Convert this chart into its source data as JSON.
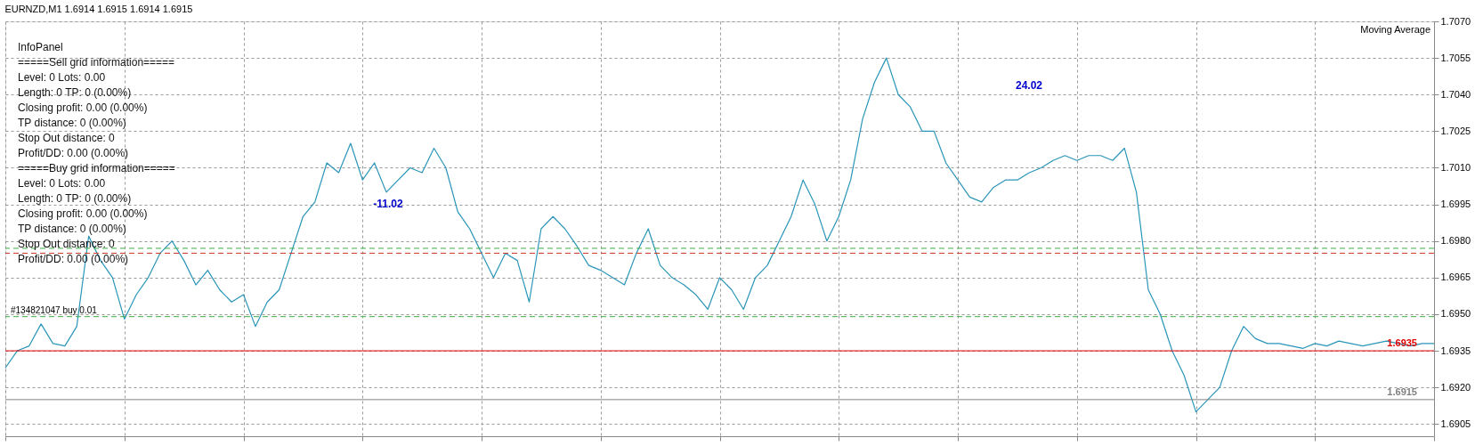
{
  "chart_data": {
    "type": "line",
    "title": "EURNZD,M1  1.6914 1.6915 1.6914 1.6915",
    "categories": [
      null,
      null,
      null,
      null,
      null,
      null,
      null,
      null,
      null,
      null,
      null,
      null,
      null,
      null,
      null,
      null,
      null,
      null,
      null,
      null,
      null,
      null,
      null,
      null,
      null,
      null,
      null,
      null,
      null,
      null,
      null,
      null,
      null,
      null,
      null,
      null,
      null,
      null,
      null,
      null,
      null,
      null,
      null,
      null,
      null,
      null,
      null,
      null,
      null,
      null,
      null,
      null,
      null,
      null,
      null,
      null,
      null,
      null,
      null,
      null,
      null,
      null,
      null,
      null,
      null,
      null,
      null,
      null,
      null,
      null,
      null,
      null,
      null,
      null,
      null,
      null,
      null,
      null,
      null,
      null,
      null,
      null,
      null,
      null,
      null,
      null,
      null,
      null,
      null,
      null,
      null,
      null,
      null,
      null,
      null,
      null,
      null,
      null,
      null,
      null,
      null,
      null,
      null,
      null,
      null,
      null,
      null,
      null,
      null,
      null,
      null,
      null,
      null,
      null,
      null,
      null,
      null,
      null,
      null,
      null,
      null
    ],
    "series": [
      {
        "color": "#2a95b8",
        "values": [
          1.6928,
          1.6935,
          1.6937,
          1.6946,
          1.6938,
          1.6937,
          1.6945,
          1.6982,
          1.6972,
          1.6965,
          1.6948,
          1.6958,
          1.6965,
          1.6975,
          1.698,
          1.6972,
          1.6962,
          1.6968,
          1.696,
          1.6955,
          1.6958,
          1.6945,
          1.6955,
          1.696,
          1.6975,
          1.699,
          1.6996,
          1.7012,
          1.7008,
          1.702,
          1.7005,
          1.7012,
          1.7,
          1.7005,
          1.701,
          1.7008,
          1.7018,
          1.701,
          1.6992,
          1.6985,
          1.6975,
          1.6965,
          1.6975,
          1.6972,
          1.6955,
          1.6985,
          1.699,
          1.6985,
          1.6978,
          1.697,
          1.6968,
          1.6965,
          1.6962,
          1.6975,
          1.6985,
          1.697,
          1.6965,
          1.6962,
          1.6958,
          1.6952,
          1.6965,
          1.696,
          1.6952,
          1.6965,
          1.697,
          1.698,
          1.699,
          1.7005,
          1.6995,
          1.698,
          1.699,
          1.7005,
          1.703,
          1.7045,
          1.7055,
          1.704,
          1.7035,
          1.7025,
          1.7025,
          1.7012,
          1.7005,
          1.6998,
          1.6996,
          1.7002,
          1.7005,
          1.7005,
          1.7008,
          1.701,
          1.7013,
          1.7015,
          1.7013,
          1.7015,
          1.7015,
          1.7013,
          1.7018,
          1.7,
          1.696,
          1.695,
          1.6935,
          1.6925,
          1.691,
          1.6915,
          1.692,
          1.6935,
          1.6945,
          1.694,
          1.6938,
          1.6938,
          1.6937,
          1.6936,
          1.6938,
          1.6937,
          1.6939,
          1.6938,
          1.6937,
          1.6938,
          1.6939,
          1.6938,
          1.6937,
          1.6938,
          1.6938
        ]
      }
    ],
    "ylim": [
      1.69,
      1.707
    ],
    "yticks": [
      1.6905,
      {
        "value": 1.692,
        "label": "1.6920"
      },
      1.6935,
      {
        "value": 1.695,
        "label": "1.6950"
      },
      1.6965,
      {
        "value": 1.698,
        "label": "1.6980"
      },
      1.6995,
      {
        "value": 1.701,
        "label": "1.7010"
      },
      1.7025,
      {
        "value": 1.704,
        "label": "1.7040"
      },
      1.7055,
      {
        "value": 1.707,
        "label": "1.7070"
      }
    ],
    "grid": true,
    "ref_lines": [
      {
        "axis": "y",
        "value": 1.6977,
        "color": "#3cb043",
        "line_style": "dashed"
      },
      {
        "axis": "y",
        "value": 1.6975,
        "color": "#d03020",
        "line_style": "dashed"
      },
      {
        "axis": "y",
        "value": 1.6949,
        "label": "#134821047 buy 0.01",
        "color": "#3cb043",
        "line_style": "dashed"
      },
      {
        "axis": "y",
        "value": 1.6935,
        "label": "1.6935",
        "color": "#e00000",
        "line_style": "solid"
      },
      {
        "axis": "y",
        "value": 1.6915,
        "label": "1.6915",
        "color": "#808080",
        "line_style": "solid"
      }
    ],
    "annotations": [
      "InfoPanel",
      "=====Sell grid information=====",
      "Level: 0 Lots: 0.00",
      "Length: 0 TP: 0 (0.00%)",
      "Closing profit: 0.00 (0.00%)",
      "TP distance: 0 (0.00%)",
      "Stop Out distance: 0",
      "Profit/DD: 0.00 (0.00%)",
      "=====Buy grid information=====",
      "Level: 0 Lots: 0.00",
      "Length: 0 TP: 0 (0.00%)",
      "Closing profit: 0.00 (0.00%)",
      "TP distance: 0 (0.00%)",
      "Stop Out distance: 0",
      "Profit/DD: 0.00 (0.00%)",
      "Moving Average",
      "-11.02",
      "24.02"
    ]
  }
}
